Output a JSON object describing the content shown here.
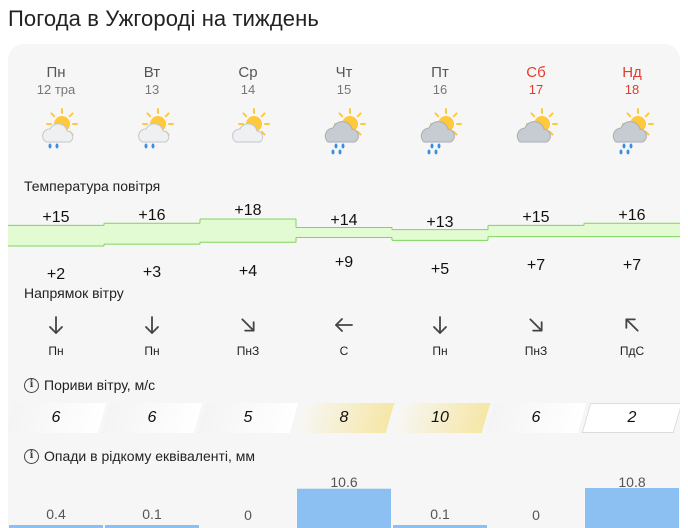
{
  "title": "Погода в Ужгороді на тиждень",
  "days": [
    {
      "name": "Пн",
      "date": "12 тра",
      "weekend": false,
      "icon": "partly-cloudy-rain-icon"
    },
    {
      "name": "Вт",
      "date": "13",
      "weekend": false,
      "icon": "partly-cloudy-rain-icon"
    },
    {
      "name": "Ср",
      "date": "14",
      "weekend": false,
      "icon": "partly-cloudy-icon"
    },
    {
      "name": "Чт",
      "date": "15",
      "weekend": false,
      "icon": "cloudy-rain-icon"
    },
    {
      "name": "Пт",
      "date": "16",
      "weekend": false,
      "icon": "cloudy-rain-icon"
    },
    {
      "name": "Сб",
      "date": "17",
      "weekend": true,
      "icon": "cloudy-icon"
    },
    {
      "name": "Нд",
      "date": "18",
      "weekend": true,
      "icon": "cloudy-rain-icon"
    }
  ],
  "temperature": {
    "label": "Температура повітря",
    "max": [
      "+15",
      "+16",
      "+18",
      "+14",
      "+13",
      "+15",
      "+16"
    ],
    "min": [
      "+2",
      "+3",
      "+4",
      "+9",
      "+5",
      "+7",
      "+7"
    ]
  },
  "wind": {
    "label": "Напрямок вітру",
    "directions": [
      "Пн",
      "Пн",
      "ПнЗ",
      "С",
      "Пн",
      "ПнЗ",
      "ПдС"
    ],
    "arrows": [
      "arrow-down-icon",
      "arrow-down-icon",
      "arrow-down-right-icon",
      "arrow-left-icon",
      "arrow-down-icon",
      "arrow-down-right-icon",
      "arrow-up-left-icon"
    ]
  },
  "gusts": {
    "label": "Пориви вітру, м/с",
    "values": [
      "6",
      "6",
      "5",
      "8",
      "10",
      "6",
      "2"
    ],
    "highlight": [
      false,
      false,
      false,
      true,
      true,
      false,
      false
    ]
  },
  "precipitation": {
    "label": "Опади в рідкому еквіваленті, мм",
    "values": [
      "0.4",
      "0.1",
      "0",
      "10.6",
      "0.1",
      "0",
      "10.8"
    ]
  },
  "colors": {
    "weekend": "#e33b2e",
    "temp_band_fill": "#e3fbd2",
    "temp_band_stroke": "#7fd65a",
    "gust_highlight": "#f5e7a6",
    "precip_fill": "#8cc0f2"
  }
}
